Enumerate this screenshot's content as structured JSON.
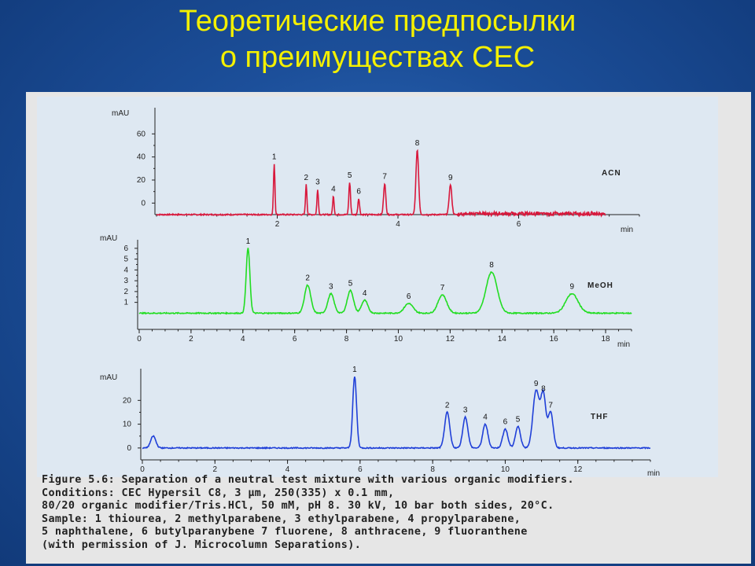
{
  "title": {
    "line1": "Теоретические предпосылки",
    "line2": "о преимуществах CEC"
  },
  "chart_data": [
    {
      "type": "line",
      "label": "ACN",
      "color": "#d8183c",
      "ylabel": "mAU",
      "xlabel": "min",
      "xlim": [
        0,
        8
      ],
      "ylim": [
        -10,
        80
      ],
      "xticks": [
        2,
        4,
        6
      ],
      "yticks": [
        0,
        20,
        40,
        60
      ],
      "baseline": -10,
      "noise_from": 5.0,
      "peaks": [
        {
          "id": "1",
          "x": 1.95,
          "h": 44,
          "w": 0.012
        },
        {
          "id": "2",
          "x": 2.48,
          "h": 26,
          "w": 0.012
        },
        {
          "id": "3",
          "x": 2.67,
          "h": 22,
          "w": 0.012
        },
        {
          "id": "4",
          "x": 2.93,
          "h": 16,
          "w": 0.012
        },
        {
          "id": "5",
          "x": 3.2,
          "h": 28,
          "w": 0.014
        },
        {
          "id": "6",
          "x": 3.35,
          "h": 14,
          "w": 0.014
        },
        {
          "id": "7",
          "x": 3.78,
          "h": 27,
          "w": 0.018
        },
        {
          "id": "8",
          "x": 4.32,
          "h": 56,
          "w": 0.022
        },
        {
          "id": "9",
          "x": 4.87,
          "h": 26,
          "w": 0.022
        }
      ]
    },
    {
      "type": "line",
      "label": "MeOH",
      "color": "#22dd22",
      "ylabel": "mAU",
      "xlabel": "min",
      "xlim": [
        0,
        19
      ],
      "ylim": [
        -1.5,
        6.5
      ],
      "xticks": [
        0,
        2,
        4,
        6,
        8,
        10,
        12,
        14,
        16,
        18
      ],
      "yticks": [
        1,
        2,
        3,
        4,
        5,
        6
      ],
      "baseline": 0,
      "noise_from": 0,
      "peaks": [
        {
          "id": "1",
          "x": 4.2,
          "h": 6.0,
          "w": 0.03
        },
        {
          "id": "2",
          "x": 6.5,
          "h": 2.6,
          "w": 0.05
        },
        {
          "id": "3",
          "x": 7.4,
          "h": 1.8,
          "w": 0.05
        },
        {
          "id": "5",
          "x": 8.15,
          "h": 2.1,
          "w": 0.05
        },
        {
          "id": "4",
          "x": 8.7,
          "h": 1.2,
          "w": 0.05
        },
        {
          "id": "6",
          "x": 10.4,
          "h": 0.9,
          "w": 0.07
        },
        {
          "id": "7",
          "x": 11.7,
          "h": 1.7,
          "w": 0.07
        },
        {
          "id": "8",
          "x": 13.6,
          "h": 3.8,
          "w": 0.09
        },
        {
          "id": "9",
          "x": 16.7,
          "h": 1.8,
          "w": 0.1
        }
      ]
    },
    {
      "type": "line",
      "label": "THF",
      "color": "#2040d8",
      "ylabel": "mAU",
      "xlabel": "min",
      "xlim": [
        0,
        14
      ],
      "ylim": [
        -5,
        32
      ],
      "xticks": [
        0,
        2,
        4,
        6,
        8,
        10,
        12
      ],
      "yticks": [
        0,
        10,
        20
      ],
      "baseline": 0,
      "noise_from": 0,
      "peaks": [
        {
          "id": "",
          "x": 0.3,
          "h": 5,
          "w": 0.04
        },
        {
          "id": "1",
          "x": 5.85,
          "h": 30,
          "w": 0.03
        },
        {
          "id": "2",
          "x": 8.4,
          "h": 15,
          "w": 0.04
        },
        {
          "id": "3",
          "x": 8.9,
          "h": 13,
          "w": 0.04
        },
        {
          "id": "4",
          "x": 9.45,
          "h": 10,
          "w": 0.04
        },
        {
          "id": "6",
          "x": 10.0,
          "h": 8,
          "w": 0.04
        },
        {
          "id": "5",
          "x": 10.35,
          "h": 9,
          "w": 0.04
        },
        {
          "id": "9",
          "x": 10.85,
          "h": 24,
          "w": 0.05
        },
        {
          "id": "8",
          "x": 11.05,
          "h": 22,
          "w": 0.04
        },
        {
          "id": "7",
          "x": 11.25,
          "h": 15,
          "w": 0.04
        }
      ]
    }
  ],
  "caption": [
    "Figure 5.6: Separation of a neutral test mixture with various organic modifiers.",
    "Conditions: CEC Hypersil C8, 3 μm, 250(335) x 0.1 mm,",
    "80/20 organic modifier/Tris.HCl, 50 mM, pH 8. 30 kV, 10 bar both sides, 20°C.",
    "Sample: 1 thiourea, 2 methylparabene, 3 ethylparabene, 4 propylparabene,",
    "5 naphthalene, 6 butylparanybene 7 fluorene, 8 anthracene, 9 fluoranthene",
    "(with permission of J. Microcolumn Separations)."
  ]
}
